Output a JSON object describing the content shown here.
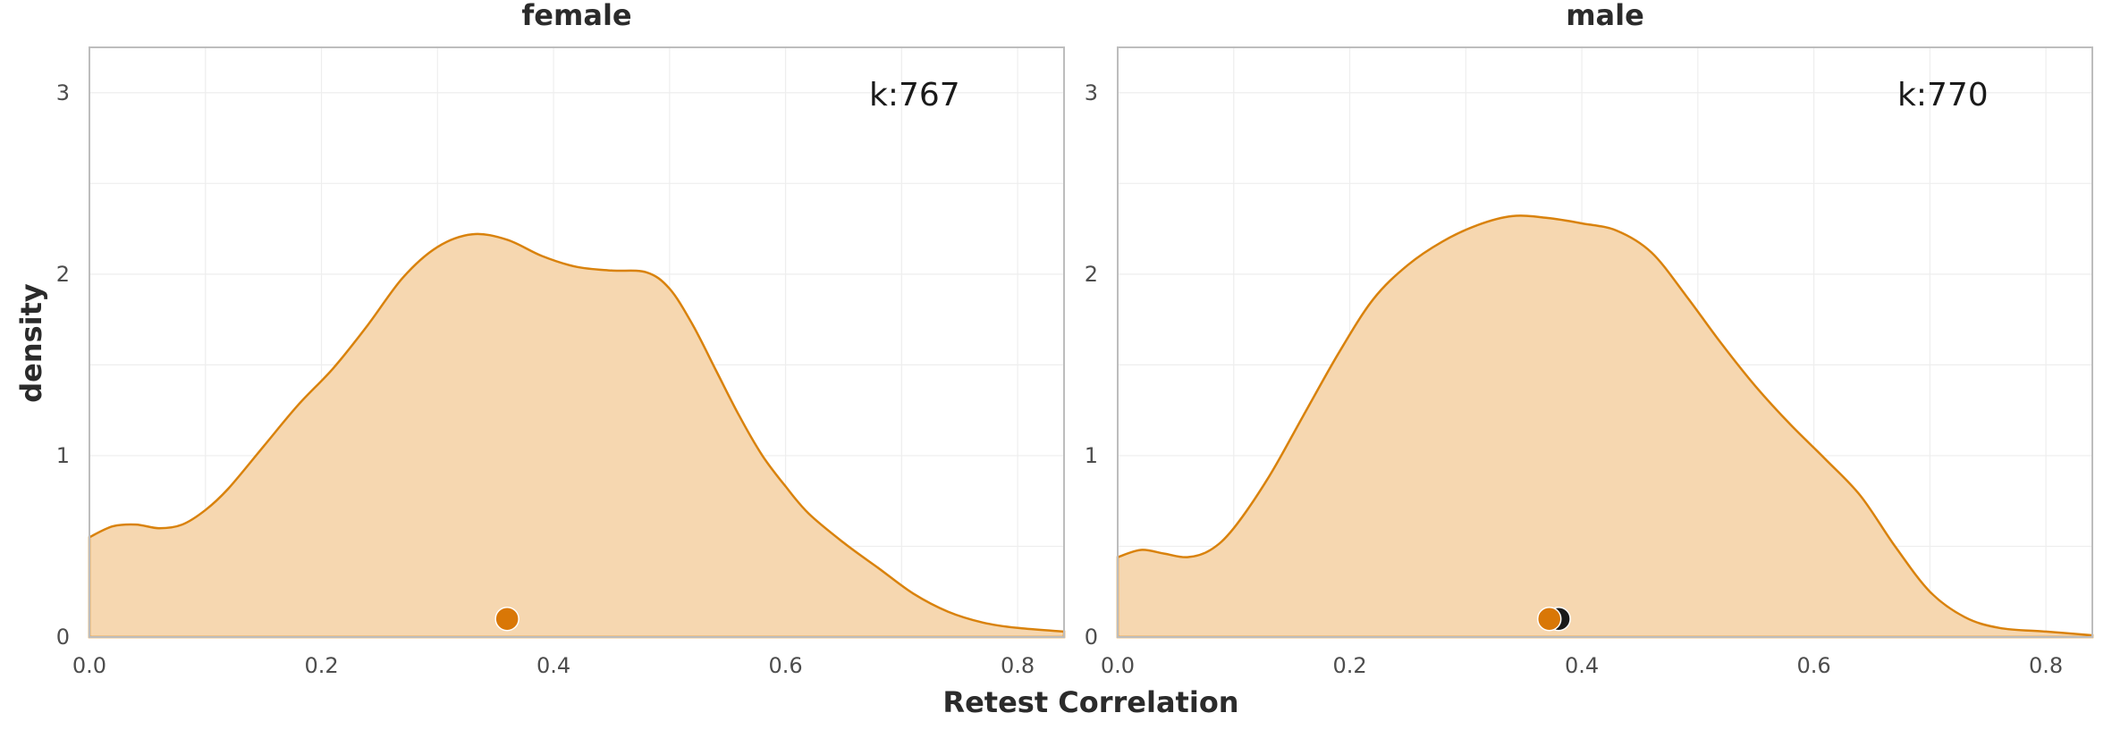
{
  "chart_data": [
    {
      "type": "area",
      "panel_title": "female",
      "annotation": "k:767",
      "xlim": [
        0.0,
        0.84
      ],
      "ylim": [
        0,
        3.25
      ],
      "xticks": [
        "0.0",
        "0.2",
        "0.4",
        "0.6",
        "0.8"
      ],
      "yticks": [
        "0",
        "1",
        "2",
        "3"
      ],
      "x": [
        0.0,
        0.02,
        0.04,
        0.06,
        0.08,
        0.1,
        0.12,
        0.15,
        0.18,
        0.21,
        0.24,
        0.27,
        0.3,
        0.33,
        0.36,
        0.39,
        0.42,
        0.45,
        0.48,
        0.5,
        0.52,
        0.54,
        0.56,
        0.58,
        0.6,
        0.62,
        0.65,
        0.68,
        0.71,
        0.74,
        0.77,
        0.8,
        0.84
      ],
      "y": [
        0.55,
        0.61,
        0.62,
        0.6,
        0.62,
        0.7,
        0.82,
        1.05,
        1.28,
        1.48,
        1.72,
        1.98,
        2.15,
        2.22,
        2.19,
        2.1,
        2.04,
        2.02,
        2.01,
        1.92,
        1.72,
        1.47,
        1.22,
        1.0,
        0.83,
        0.68,
        0.52,
        0.38,
        0.24,
        0.14,
        0.08,
        0.05,
        0.03
      ],
      "mean_points": [
        {
          "x": 0.36,
          "y": 0.1,
          "color": "#d97706"
        }
      ]
    },
    {
      "type": "area",
      "panel_title": "male",
      "annotation": "k:770",
      "xlim": [
        0.0,
        0.84
      ],
      "ylim": [
        0,
        3.25
      ],
      "xticks": [
        "0.0",
        "0.2",
        "0.4",
        "0.6",
        "0.8"
      ],
      "yticks": [
        "0",
        "1",
        "2",
        "3"
      ],
      "x": [
        0.0,
        0.02,
        0.04,
        0.06,
        0.08,
        0.1,
        0.13,
        0.16,
        0.19,
        0.22,
        0.25,
        0.28,
        0.31,
        0.34,
        0.37,
        0.4,
        0.43,
        0.46,
        0.49,
        0.52,
        0.55,
        0.58,
        0.61,
        0.64,
        0.67,
        0.7,
        0.73,
        0.76,
        0.8,
        0.84
      ],
      "y": [
        0.44,
        0.48,
        0.46,
        0.44,
        0.48,
        0.6,
        0.88,
        1.22,
        1.56,
        1.86,
        2.05,
        2.18,
        2.27,
        2.32,
        2.31,
        2.28,
        2.24,
        2.12,
        1.88,
        1.62,
        1.38,
        1.17,
        0.98,
        0.78,
        0.5,
        0.25,
        0.11,
        0.05,
        0.03,
        0.01
      ],
      "mean_points": [
        {
          "x": 0.38,
          "y": 0.1,
          "color": "#1a1a1a"
        },
        {
          "x": 0.372,
          "y": 0.1,
          "color": "#d97706"
        }
      ]
    }
  ],
  "xlabel": "Retest Correlation",
  "ylabel": "density",
  "colors": {
    "fill": "#f6d7b0",
    "stroke": "#d9820c",
    "grid": "#eeeeee",
    "border": "#bdbdbd"
  },
  "grid": true
}
